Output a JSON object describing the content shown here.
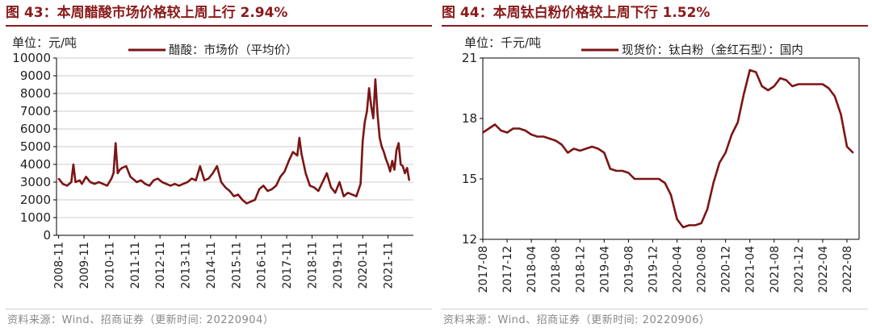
{
  "colors": {
    "title": "#8B1A1A",
    "line": "#7B1515",
    "grid": "#cccccc",
    "axis": "#000000"
  },
  "chart_data": [
    {
      "type": "line",
      "title": "图 43：本周醋酸市场价格较上周上行 2.94%",
      "unit_label": "单位：元/吨",
      "source": "资料来源：Wind、招商证券（更新时间: 20220904）",
      "ylim": [
        0,
        10000
      ],
      "yticks": [
        "0",
        "1000",
        "2000",
        "3000",
        "4000",
        "5000",
        "6000",
        "7000",
        "8000",
        "9000",
        "10000"
      ],
      "xticks": [
        "2008-11",
        "2009-11",
        "2010-11",
        "2011-11",
        "2012-11",
        "2013-11",
        "2014-11",
        "2015-11",
        "2016-11",
        "2017-11",
        "2018-11",
        "2019-11",
        "2020-11",
        "2021-11"
      ],
      "grid": true,
      "legend_position": "top",
      "series": [
        {
          "name": "醋酸：市场价（平均价）",
          "x": [
            "2008-11",
            "2009-01",
            "2009-03",
            "2009-05",
            "2009-06",
            "2009-07",
            "2009-09",
            "2009-10",
            "2009-12",
            "2010-02",
            "2010-04",
            "2010-06",
            "2010-08",
            "2010-10",
            "2010-12",
            "2011-01",
            "2011-02",
            "2011-03",
            "2011-04",
            "2011-05",
            "2011-07",
            "2011-08",
            "2011-09",
            "2011-10",
            "2011-12",
            "2012-02",
            "2012-04",
            "2012-06",
            "2012-08",
            "2012-10",
            "2012-12",
            "2013-02",
            "2013-04",
            "2013-06",
            "2013-08",
            "2013-10",
            "2013-12",
            "2014-02",
            "2014-04",
            "2014-06",
            "2014-08",
            "2014-10",
            "2014-12",
            "2015-02",
            "2015-04",
            "2015-06",
            "2015-08",
            "2015-10",
            "2015-12",
            "2016-02",
            "2016-04",
            "2016-06",
            "2016-08",
            "2016-10",
            "2016-12",
            "2017-02",
            "2017-04",
            "2017-06",
            "2017-08",
            "2017-10",
            "2017-12",
            "2018-02",
            "2018-04",
            "2018-05",
            "2018-06",
            "2018-08",
            "2018-10",
            "2018-12",
            "2019-02",
            "2019-04",
            "2019-06",
            "2019-08",
            "2019-10",
            "2019-12",
            "2020-02",
            "2020-04",
            "2020-06",
            "2020-08",
            "2020-10",
            "2020-11",
            "2020-12",
            "2021-01",
            "2021-02",
            "2021-03",
            "2021-04",
            "2021-05",
            "2021-06",
            "2021-07",
            "2021-08",
            "2021-09",
            "2021-10",
            "2021-11",
            "2021-12",
            "2022-01",
            "2022-02",
            "2022-03",
            "2022-04",
            "2022-05",
            "2022-06",
            "2022-07",
            "2022-08",
            "2022-09"
          ],
          "values": [
            3200,
            2900,
            2800,
            3000,
            4000,
            3000,
            3100,
            2900,
            3300,
            3000,
            2900,
            3000,
            2900,
            2800,
            3200,
            3500,
            5200,
            3500,
            3700,
            3800,
            3900,
            3600,
            3300,
            3200,
            3000,
            3100,
            2900,
            2800,
            3100,
            3200,
            3000,
            2900,
            2800,
            2900,
            2800,
            2900,
            3000,
            3200,
            3100,
            3900,
            3100,
            3200,
            3500,
            3900,
            3000,
            2700,
            2500,
            2200,
            2300,
            2000,
            1800,
            1900,
            2000,
            2600,
            2800,
            2500,
            2600,
            2800,
            3300,
            3600,
            4200,
            4700,
            4500,
            5500,
            4600,
            3500,
            2800,
            2700,
            2500,
            3000,
            3500,
            2700,
            2400,
            3000,
            2200,
            2400,
            2300,
            2200,
            2900,
            5300,
            6400,
            7000,
            8300,
            7300,
            6600,
            8800,
            6900,
            5500,
            5000,
            4700,
            4300,
            4000,
            3600,
            4200,
            3700,
            4800,
            5200,
            4000,
            3900,
            3500,
            3800,
            3100
          ]
        }
      ]
    },
    {
      "type": "line",
      "title": "图 44：本周钛白粉价格较上周下行 1.52%",
      "unit_label": "单位：千元/吨",
      "source": "资料来源：Wind、招商证券（更新时间: 20220906）",
      "ylim": [
        12,
        21
      ],
      "yticks": [
        "12",
        "15",
        "18",
        "21"
      ],
      "xticks": [
        "2017-08",
        "2017-12",
        "2018-04",
        "2018-08",
        "2018-12",
        "2019-04",
        "2019-08",
        "2019-12",
        "2020-04",
        "2020-08",
        "2020-12",
        "2021-04",
        "2021-08",
        "2021-12",
        "2022-04",
        "2022-08"
      ],
      "grid": false,
      "legend_position": "top",
      "series": [
        {
          "name": "现货价：钛白粉（金红石型）：国内",
          "x": [
            "2017-08",
            "2017-09",
            "2017-10",
            "2017-11",
            "2017-12",
            "2018-01",
            "2018-02",
            "2018-03",
            "2018-04",
            "2018-05",
            "2018-06",
            "2018-07",
            "2018-08",
            "2018-09",
            "2018-10",
            "2018-11",
            "2018-12",
            "2019-01",
            "2019-02",
            "2019-03",
            "2019-04",
            "2019-05",
            "2019-06",
            "2019-07",
            "2019-08",
            "2019-09",
            "2019-10",
            "2019-11",
            "2019-12",
            "2020-01",
            "2020-02",
            "2020-03",
            "2020-04",
            "2020-05",
            "2020-06",
            "2020-07",
            "2020-08",
            "2020-09",
            "2020-10",
            "2020-11",
            "2020-12",
            "2021-01",
            "2021-02",
            "2021-03",
            "2021-04",
            "2021-05",
            "2021-06",
            "2021-07",
            "2021-08",
            "2021-09",
            "2021-10",
            "2021-11",
            "2021-12",
            "2022-01",
            "2022-02",
            "2022-03",
            "2022-04",
            "2022-05",
            "2022-06",
            "2022-07",
            "2022-08",
            "2022-09"
          ],
          "values": [
            17.3,
            17.5,
            17.7,
            17.4,
            17.3,
            17.5,
            17.5,
            17.4,
            17.2,
            17.1,
            17.1,
            17.0,
            16.9,
            16.7,
            16.3,
            16.5,
            16.4,
            16.5,
            16.6,
            16.5,
            16.3,
            15.5,
            15.4,
            15.4,
            15.3,
            15.0,
            15.0,
            15.0,
            15.0,
            15.0,
            14.8,
            14.2,
            13.0,
            12.6,
            12.7,
            12.7,
            12.8,
            13.5,
            14.8,
            15.8,
            16.3,
            17.2,
            17.8,
            19.2,
            20.4,
            20.3,
            19.6,
            19.4,
            19.6,
            20.0,
            19.9,
            19.6,
            19.7,
            19.7,
            19.7,
            19.7,
            19.7,
            19.5,
            19.1,
            18.2,
            16.6,
            16.3
          ]
        }
      ]
    }
  ]
}
